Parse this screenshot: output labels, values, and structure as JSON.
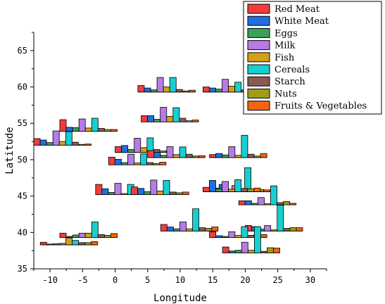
{
  "chart_data": {
    "type": "bar",
    "xlabel": "Longitude",
    "ylabel": "Latitude",
    "xlim": [
      -12.5,
      32.5
    ],
    "ylim": [
      35,
      67.5
    ],
    "xticks": [
      -10,
      -5,
      0,
      5,
      10,
      15,
      20,
      25,
      30
    ],
    "yticks": [
      35,
      40,
      45,
      50,
      55,
      60,
      65
    ],
    "legend_position": "top-right",
    "series": [
      {
        "name": "Red Meat",
        "color": "#f03c3c"
      },
      {
        "name": "White Meat",
        "color": "#1f6fe0"
      },
      {
        "name": "Eggs",
        "color": "#3aa05a"
      },
      {
        "name": "Milk",
        "color": "#b67be6"
      },
      {
        "name": "Fish",
        "color": "#d4a017"
      },
      {
        "name": "Cereals",
        "color": "#17cfcf"
      },
      {
        "name": "Starch",
        "color": "#8b5a52"
      },
      {
        "name": "Nuts",
        "color": "#a39b15"
      },
      {
        "name": "Fruits & Vegetables",
        "color": "#f2640f"
      }
    ],
    "groups": [
      {
        "lon": 3.5,
        "lat": 59.3,
        "values": [
          0.9,
          0.55,
          0.3,
          2.0,
          0.7,
          2.0,
          0.35,
          0.15,
          0.25
        ]
      },
      {
        "lon": 13.5,
        "lat": 59.3,
        "values": [
          0.7,
          0.55,
          0.4,
          1.75,
          0.8,
          1.35,
          0.3,
          0.15,
          0.25
        ]
      },
      {
        "lon": 4.0,
        "lat": 55.2,
        "values": [
          0.85,
          0.85,
          0.35,
          2.0,
          0.75,
          1.95,
          0.5,
          0.15,
          0.25
        ]
      },
      {
        "lon": -8.5,
        "lat": 53.9,
        "values": [
          1.6,
          0.55,
          0.5,
          1.7,
          0.45,
          1.8,
          0.4,
          0.25,
          0.25
        ]
      },
      {
        "lon": -12.5,
        "lat": 52.0,
        "values": [
          0.9,
          0.7,
          0.35,
          1.95,
          0.5,
          1.85,
          0.4,
          0.1,
          0.15
        ]
      },
      {
        "lon": 0.0,
        "lat": 51.0,
        "values": [
          0.8,
          0.95,
          0.4,
          1.95,
          0.65,
          2.0,
          0.4,
          0.2,
          0.2
        ]
      },
      {
        "lon": 5.0,
        "lat": 50.3,
        "values": [
          0.95,
          0.7,
          0.3,
          1.5,
          0.4,
          1.45,
          0.45,
          0.2,
          0.25
        ]
      },
      {
        "lon": 14.5,
        "lat": 50.3,
        "values": [
          0.4,
          0.55,
          0.35,
          1.5,
          0.3,
          3.05,
          0.45,
          0.2,
          0.55
        ]
      },
      {
        "lon": -1.0,
        "lat": 49.3,
        "values": [
          1.05,
          0.75,
          0.3,
          1.45,
          0.25,
          1.5,
          0.3,
          0.15,
          0.35
        ]
      },
      {
        "lon": -3.0,
        "lat": 45.2,
        "values": [
          1.4,
          0.8,
          0.3,
          1.55,
          0.15,
          1.4,
          0.2,
          0.1,
          0.25
        ]
      },
      {
        "lon": 2.5,
        "lat": 45.2,
        "values": [
          1.05,
          0.85,
          0.4,
          2.0,
          0.5,
          1.95,
          0.35,
          0.25,
          0.35
        ]
      },
      {
        "lon": 15.0,
        "lat": 45.6,
        "values": [
          0.5,
          1.0,
          0.3,
          0.85,
          0.35,
          3.3,
          0.35,
          0.3,
          0.25
        ]
      },
      {
        "lon": 13.5,
        "lat": 45.6,
        "values": [
          0.6,
          1.55,
          0.4,
          1.4,
          0.35,
          1.65,
          0.45,
          0.4,
          0.5
        ]
      },
      {
        "lon": 19.0,
        "lat": 43.8,
        "values": [
          0.55,
          0.55,
          0.2,
          1.0,
          0.15,
          2.6,
          0.3,
          0.45,
          0.2
        ]
      },
      {
        "lon": 7.0,
        "lat": 40.2,
        "values": [
          0.9,
          0.55,
          0.3,
          1.25,
          0.3,
          3.05,
          0.45,
          0.35,
          0.55
        ]
      },
      {
        "lon": 20.0,
        "lat": 40.2,
        "values": [
          0.75,
          0.6,
          0.25,
          0.75,
          0.15,
          3.55,
          0.35,
          0.45,
          0.45
        ]
      },
      {
        "lon": -11.5,
        "lat": 38.3,
        "values": [
          0.35,
          0.1,
          0.15,
          0.2,
          0.95,
          0.6,
          0.3,
          0.3,
          0.45
        ]
      },
      {
        "lon": -8.5,
        "lat": 39.3,
        "values": [
          0.6,
          0.15,
          0.35,
          0.6,
          0.6,
          2.15,
          0.4,
          0.3,
          0.55
        ]
      },
      {
        "lon": 14.5,
        "lat": 39.3,
        "values": [
          0.8,
          0.25,
          0.15,
          0.8,
          0.3,
          1.5,
          0.3,
          0.5,
          0.4
        ]
      },
      {
        "lon": 16.5,
        "lat": 37.2,
        "values": [
          0.8,
          0.25,
          0.35,
          1.45,
          0.35,
          3.6,
          0.2,
          0.7,
          0.65
        ]
      }
    ]
  }
}
